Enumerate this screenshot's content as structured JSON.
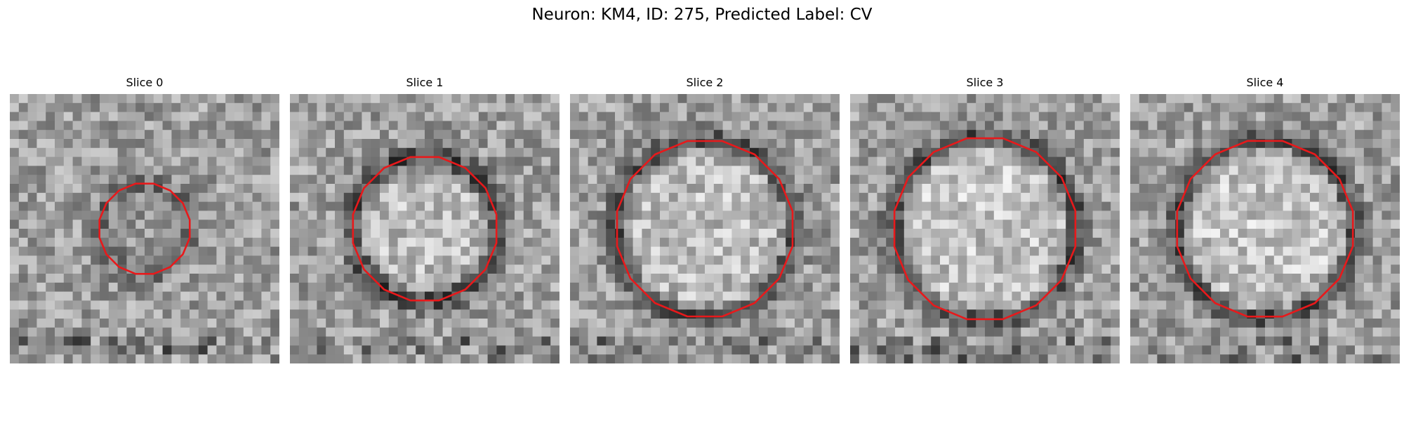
{
  "figure": {
    "title": "Neuron: KM4, ID: 275, Predicted Label: CV",
    "outline_color": "#e8191b",
    "colormap": "gray",
    "grid_size": 30
  },
  "panels": [
    {
      "title": "Slice 0",
      "vesicle": {
        "radius": 0.17,
        "rim_darkness": 0.18,
        "inner_brightness": -0.05
      }
    },
    {
      "title": "Slice 1",
      "vesicle": {
        "radius": 0.27,
        "rim_darkness": 0.32,
        "inner_brightness": 0.12
      }
    },
    {
      "title": "Slice 2",
      "vesicle": {
        "radius": 0.33,
        "rim_darkness": 0.3,
        "inner_brightness": 0.12
      }
    },
    {
      "title": "Slice 3",
      "vesicle": {
        "radius": 0.34,
        "rim_darkness": 0.3,
        "inner_brightness": 0.15
      }
    },
    {
      "title": "Slice 4",
      "vesicle": {
        "radius": 0.33,
        "rim_darkness": 0.32,
        "inner_brightness": 0.15
      }
    }
  ]
}
